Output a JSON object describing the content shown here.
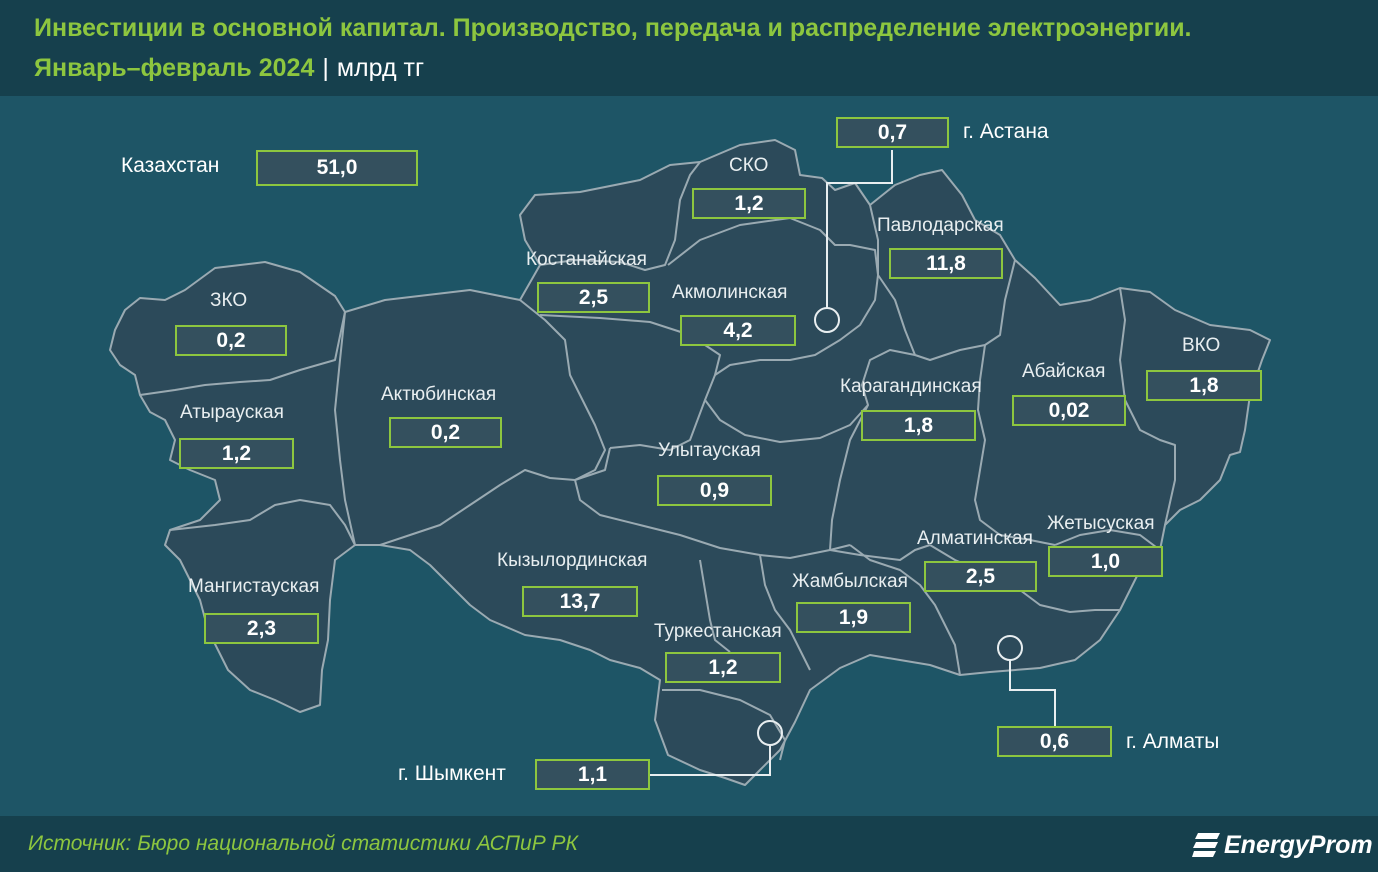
{
  "header": {
    "title": "Инвестиции в основной капитал. Производство, передача и распределение электроэнергии.",
    "subtitle": "Январь–февраль 2024",
    "separator": "|",
    "unit": "млрд тг"
  },
  "total": {
    "label": "Казахстан",
    "value": "51,0"
  },
  "regions": [
    {
      "name": "ЗКО",
      "value": "0,2"
    },
    {
      "name": "Атырауская",
      "value": "1,2"
    },
    {
      "name": "Мангистауская",
      "value": "2,3"
    },
    {
      "name": "Актюбинская",
      "value": "0,2"
    },
    {
      "name": "Костанайская",
      "value": "2,5"
    },
    {
      "name": "СКО",
      "value": "1,2"
    },
    {
      "name": "Акмолинская",
      "value": "4,2"
    },
    {
      "name": "Павлодарская",
      "value": "11,8"
    },
    {
      "name": "Карагандинская",
      "value": "1,8"
    },
    {
      "name": "Улытауская",
      "value": "0,9"
    },
    {
      "name": "Абайская",
      "value": "0,02"
    },
    {
      "name": "ВКО",
      "value": "1,8"
    },
    {
      "name": "Кызылординская",
      "value": "13,7"
    },
    {
      "name": "Туркестанская",
      "value": "1,2"
    },
    {
      "name": "Жамбылская",
      "value": "1,9"
    },
    {
      "name": "Алматинская",
      "value": "2,5"
    },
    {
      "name": "Жетысуская",
      "value": "1,0"
    }
  ],
  "cities": [
    {
      "name": "г. Астана",
      "value": "0,7"
    },
    {
      "name": "г. Алматы",
      "value": "0,6"
    },
    {
      "name": "г. Шымкент",
      "value": "1,1"
    }
  ],
  "footer": {
    "source": "Источник: Бюро национальной статистики АСПиР РК",
    "logo_text": "EnergyProm"
  },
  "colors": {
    "accent": "#8dc63f",
    "background": "#1e5566",
    "region_fill": "#2c4a5a",
    "region_border": "#9aaab2"
  }
}
